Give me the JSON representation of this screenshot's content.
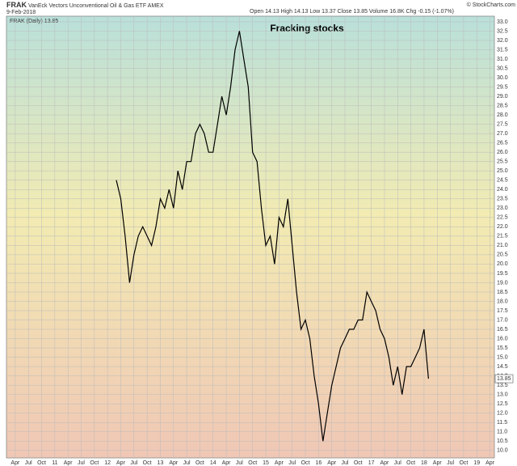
{
  "header": {
    "symbol": "FRAK",
    "name": "VanEck Vectors Unconventional Oil & Gas ETF AMEX",
    "date": "9-Feb-2018",
    "quote": "Open 14.13  High 14.13  Low 13.37  Close 13.85  Volume 16.8K  Chg -0.15 (-1.07%)",
    "credit": "© StockCharts.com"
  },
  "chart_data": {
    "type": "line",
    "title": "Fracking stocks",
    "x": [
      "2012-03",
      "2012-04",
      "2012-05",
      "2012-06",
      "2012-07",
      "2012-08",
      "2012-09",
      "2012-10",
      "2012-11",
      "2012-12",
      "2013-01",
      "2013-02",
      "2013-03",
      "2013-04",
      "2013-05",
      "2013-06",
      "2013-07",
      "2013-08",
      "2013-09",
      "2013-10",
      "2013-11",
      "2013-12",
      "2014-01",
      "2014-02",
      "2014-03",
      "2014-04",
      "2014-05",
      "2014-06",
      "2014-07",
      "2014-08",
      "2014-09",
      "2014-10",
      "2014-11",
      "2014-12",
      "2015-01",
      "2015-02",
      "2015-03",
      "2015-04",
      "2015-05",
      "2015-06",
      "2015-07",
      "2015-08",
      "2015-09",
      "2015-10",
      "2015-11",
      "2015-12",
      "2016-01",
      "2016-02",
      "2016-03",
      "2016-04",
      "2016-05",
      "2016-06",
      "2016-07",
      "2016-08",
      "2016-09",
      "2016-10",
      "2016-11",
      "2016-12",
      "2017-01",
      "2017-02",
      "2017-03",
      "2017-04",
      "2017-05",
      "2017-06",
      "2017-07",
      "2017-08",
      "2017-09",
      "2017-10",
      "2017-11",
      "2017-12",
      "2018-01",
      "2018-02"
    ],
    "series": [
      {
        "name": "FRAK (Daily)",
        "color": "#000000",
        "values": [
          24.5,
          23.5,
          21.5,
          19.0,
          20.5,
          21.5,
          22.0,
          21.5,
          21.0,
          22.0,
          23.5,
          23.0,
          24.0,
          23.0,
          25.0,
          24.0,
          25.5,
          25.5,
          27.0,
          27.5,
          27.0,
          26.0,
          26.0,
          27.5,
          29.0,
          28.0,
          29.5,
          31.5,
          32.5,
          31.0,
          29.5,
          26.0,
          25.5,
          23.0,
          21.0,
          21.5,
          20.0,
          22.5,
          22.0,
          23.5,
          21.0,
          18.5,
          16.5,
          17.0,
          16.0,
          14.0,
          12.5,
          10.5,
          12.0,
          13.5,
          14.5,
          15.5,
          16.0,
          16.5,
          16.5,
          17.0,
          17.0,
          18.5,
          18.0,
          17.5,
          16.5,
          16.0,
          15.0,
          13.5,
          14.5,
          13.0,
          14.5,
          14.5,
          15.0,
          15.5,
          16.5,
          13.85
        ]
      }
    ],
    "xlim": [
      "2010-02",
      "2019-05"
    ],
    "xticks": [
      {
        "value": "2010-04",
        "label": "Apr"
      },
      {
        "value": "2010-07",
        "label": "Jul"
      },
      {
        "value": "2010-10",
        "label": "Oct"
      },
      {
        "value": "2011-01",
        "label": "11"
      },
      {
        "value": "2011-04",
        "label": "Apr"
      },
      {
        "value": "2011-07",
        "label": "Jul"
      },
      {
        "value": "2011-10",
        "label": "Oct"
      },
      {
        "value": "2012-01",
        "label": "12"
      },
      {
        "value": "2012-04",
        "label": "Apr"
      },
      {
        "value": "2012-07",
        "label": "Jul"
      },
      {
        "value": "2012-10",
        "label": "Oct"
      },
      {
        "value": "2013-01",
        "label": "13"
      },
      {
        "value": "2013-04",
        "label": "Apr"
      },
      {
        "value": "2013-07",
        "label": "Jul"
      },
      {
        "value": "2013-10",
        "label": "Oct"
      },
      {
        "value": "2014-01",
        "label": "14"
      },
      {
        "value": "2014-04",
        "label": "Apr"
      },
      {
        "value": "2014-07",
        "label": "Jul"
      },
      {
        "value": "2014-10",
        "label": "Oct"
      },
      {
        "value": "2015-01",
        "label": "15"
      },
      {
        "value": "2015-04",
        "label": "Apr"
      },
      {
        "value": "2015-07",
        "label": "Jul"
      },
      {
        "value": "2015-10",
        "label": "Oct"
      },
      {
        "value": "2016-01",
        "label": "16"
      },
      {
        "value": "2016-04",
        "label": "Apr"
      },
      {
        "value": "2016-07",
        "label": "Jul"
      },
      {
        "value": "2016-10",
        "label": "Oct"
      },
      {
        "value": "2017-01",
        "label": "17"
      },
      {
        "value": "2017-04",
        "label": "Apr"
      },
      {
        "value": "2017-07",
        "label": "Jul"
      },
      {
        "value": "2017-10",
        "label": "Oct"
      },
      {
        "value": "2018-01",
        "label": "18"
      },
      {
        "value": "2018-04",
        "label": "Apr"
      },
      {
        "value": "2018-07",
        "label": "Jul"
      },
      {
        "value": "2018-10",
        "label": "Oct"
      },
      {
        "value": "2019-01",
        "label": "19"
      },
      {
        "value": "2019-04",
        "label": "Apr"
      }
    ],
    "ylim": [
      9.6,
      33.3
    ],
    "yticks": [
      {
        "value": 10,
        "label": "10.0"
      },
      10.5,
      {
        "value": 11,
        "label": "11.0"
      },
      11.5,
      {
        "value": 12,
        "label": "12.0"
      },
      12.5,
      {
        "value": 13,
        "label": "13.0"
      },
      13.5,
      {
        "value": 14,
        "label": "14.0"
      },
      14.5,
      {
        "value": 15,
        "label": "15.0"
      },
      15.5,
      {
        "value": 16,
        "label": "16.0"
      },
      16.5,
      {
        "value": 17,
        "label": "17.0"
      },
      17.5,
      {
        "value": 18,
        "label": "18.0"
      },
      18.5,
      {
        "value": 19,
        "label": "19.0"
      },
      19.5,
      {
        "value": 20,
        "label": "20.0"
      },
      20.5,
      {
        "value": 21,
        "label": "21.0"
      },
      21.5,
      {
        "value": 22,
        "label": "22.0"
      },
      22.5,
      {
        "value": 23,
        "label": "23.0"
      },
      23.5,
      {
        "value": 24,
        "label": "24.0"
      },
      24.5,
      {
        "value": 25,
        "label": "25.0"
      },
      25.5,
      {
        "value": 26,
        "label": "26.0"
      },
      26.5,
      {
        "value": 27,
        "label": "27.0"
      },
      27.5,
      {
        "value": 28,
        "label": "28.0"
      },
      28.5,
      {
        "value": 29,
        "label": "29.0"
      },
      29.5,
      {
        "value": 30,
        "label": "30.0"
      },
      30.5,
      {
        "value": 31,
        "label": "31.0"
      },
      31.5,
      {
        "value": 32,
        "label": "32.0"
      },
      32.5,
      {
        "value": 33,
        "label": "33.0"
      }
    ],
    "grid": true
  }
}
